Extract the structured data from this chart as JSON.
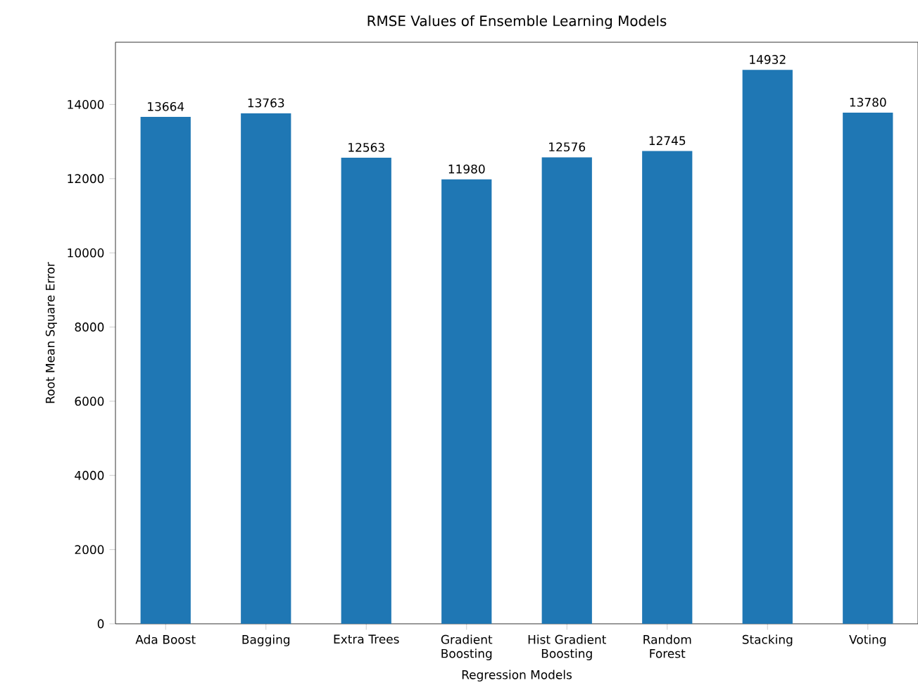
{
  "chart_data": {
    "type": "bar",
    "title": "RMSE Values of Ensemble Learning Models",
    "xlabel": "Regression Models",
    "ylabel": "Root Mean Square Error",
    "categories": [
      "Ada Boost",
      "Bagging",
      "Extra Trees",
      "Gradient Boosting",
      "Hist Gradient Boosting",
      "Random Forest",
      "Stacking",
      "Voting"
    ],
    "values": [
      13664,
      13763,
      12563,
      11980,
      12576,
      12745,
      14932,
      13780
    ],
    "color": "#1f77b4",
    "ylim": [
      0,
      15678
    ],
    "yticks": [
      0,
      2000,
      4000,
      6000,
      8000,
      10000,
      12000,
      14000
    ],
    "data_labels": true
  }
}
